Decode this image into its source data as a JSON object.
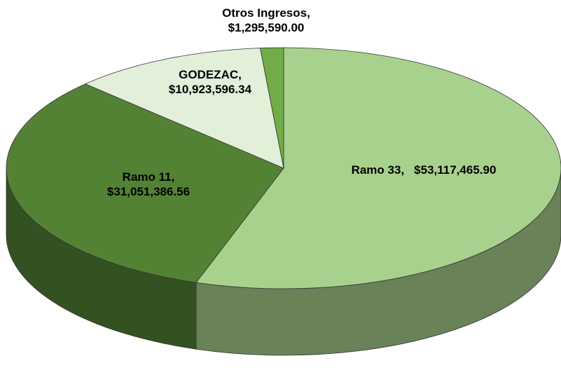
{
  "chart_data": {
    "type": "pie3d",
    "categories": [
      "Ramo 33,",
      "Ramo 11,",
      "GODEZAC,",
      "Otros Ingresos,"
    ],
    "values": [
      53117465.9,
      31051386.56,
      10923596.34,
      1295590.0
    ],
    "value_labels": [
      "$53,117,465.90",
      "$31,051,386.56",
      "$10,923,596.34",
      "$1,295,590.00"
    ],
    "colors": [
      "#a9d18e",
      "#548235",
      "#e2efd9",
      "#70ad47"
    ]
  }
}
